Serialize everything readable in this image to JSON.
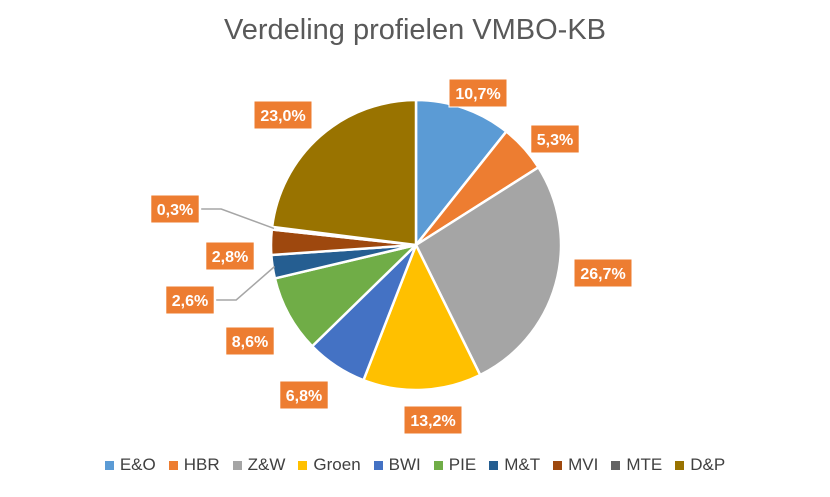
{
  "chart_data": {
    "type": "pie",
    "title": "Verdeling profielen VMBO-KB",
    "categories": [
      "E&O",
      "HBR",
      "Z&W",
      "Groen",
      "BWI",
      "PIE",
      "M&T",
      "MVI",
      "MTE",
      "D&P"
    ],
    "values": [
      10.7,
      5.3,
      26.7,
      13.2,
      6.8,
      8.6,
      2.6,
      2.8,
      0.3,
      23.0
    ],
    "data_labels": [
      "10,7%",
      "5,3%",
      "26,7%",
      "13,2%",
      "6,8%",
      "8,6%",
      "2,6%",
      "2,8%",
      "0,3%",
      "23,0%"
    ],
    "colors": [
      "#5B9BD5",
      "#ED7D31",
      "#A5A5A5",
      "#FFC000",
      "#4472C4",
      "#70AD47",
      "#255E91",
      "#9E480E",
      "#636363",
      "#997300"
    ],
    "label_box_color": "#ED7D31",
    "legend_position": "bottom",
    "start_angle": "12 o'clock, clockwise"
  }
}
